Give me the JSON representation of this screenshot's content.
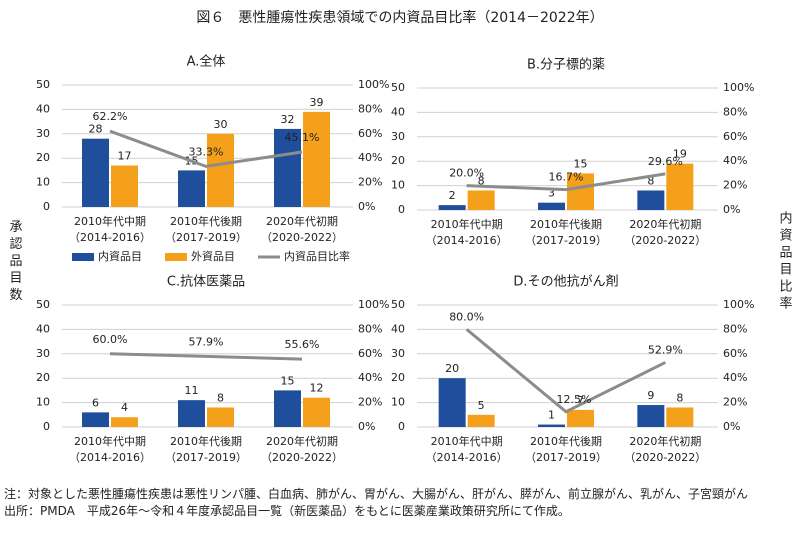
{
  "title": "図６　悪性腫瘍性疾患領域での内資品目比率（2014－2022年）",
  "y_label": "承認品目数",
  "y2_label": "内資品目比率",
  "chart_data": [
    {
      "type": "bar_line",
      "title": "A.全体",
      "categories": [
        [
          "2010年代中期",
          "（2014-2016）"
        ],
        [
          "2010年代後期",
          "（2017-2019）"
        ],
        [
          "2020年代初期",
          "（2020-2022）"
        ]
      ],
      "series": [
        {
          "name": "内資品目",
          "color": "#1f4e9c",
          "values": [
            28,
            15,
            32
          ]
        },
        {
          "name": "外資品目",
          "color": "#f5a01a",
          "values": [
            17,
            30,
            39
          ]
        },
        {
          "name": "内資品目比率",
          "color": "#8c8c8c",
          "axis": "y2",
          "values": [
            62.2,
            33.3,
            45.1
          ],
          "value_labels": [
            "62.2%",
            "33.3%",
            "45.1%"
          ]
        }
      ],
      "ylim": [
        0,
        50
      ],
      "yticks": [
        0,
        10,
        20,
        30,
        40,
        50
      ],
      "y2lim": [
        0,
        100
      ],
      "y2ticks": [
        {
          "value": 0,
          "label": "0%"
        },
        {
          "value": 20,
          "label": "20%"
        },
        {
          "value": 40,
          "label": "40%"
        },
        {
          "value": 60,
          "label": "60%"
        },
        {
          "value": 80,
          "label": "80%"
        },
        {
          "value": 100,
          "label": "100%"
        }
      ],
      "grid": true
    },
    {
      "type": "bar_line",
      "title": "B.分子標的薬",
      "categories": [
        [
          "2010年代中期",
          "（2014-2016）"
        ],
        [
          "2010年代後期",
          "（2017-2019）"
        ],
        [
          "2020年代初期",
          "（2020-2022）"
        ]
      ],
      "series": [
        {
          "color": "#1f4e9c",
          "values": [
            2,
            3,
            8
          ]
        },
        {
          "color": "#f5a01a",
          "values": [
            8,
            15,
            19
          ]
        },
        {
          "color": "#8c8c8c",
          "axis": "y2",
          "values": [
            20.0,
            16.7,
            29.6
          ],
          "value_labels": [
            "20.0%",
            "16.7%",
            "29.6%"
          ]
        }
      ],
      "ylim": [
        0,
        50
      ],
      "yticks": [
        0,
        10,
        20,
        30,
        40,
        50
      ],
      "y2lim": [
        0,
        100
      ],
      "y2ticks": [
        {
          "value": 0,
          "label": "0%"
        },
        {
          "value": 20,
          "label": "20%"
        },
        {
          "value": 40,
          "label": "40%"
        },
        {
          "value": 60,
          "label": "60%"
        },
        {
          "value": 80,
          "label": "80%"
        },
        {
          "value": 100,
          "label": "100%"
        }
      ],
      "grid": true
    },
    {
      "type": "bar_line",
      "title": "C.抗体医薬品",
      "categories": [
        [
          "2010年代中期",
          "（2014-2016）"
        ],
        [
          "2010年代後期",
          "（2017-2019）"
        ],
        [
          "2020年代初期",
          "（2020-2022）"
        ]
      ],
      "series": [
        {
          "color": "#1f4e9c",
          "values": [
            6,
            11,
            15
          ]
        },
        {
          "color": "#f5a01a",
          "values": [
            4,
            8,
            12
          ]
        },
        {
          "color": "#8c8c8c",
          "axis": "y2",
          "values": [
            60.0,
            57.9,
            55.6
          ],
          "value_labels": [
            "60.0%",
            "57.9%",
            "55.6%"
          ]
        }
      ],
      "ylim": [
        0,
        50
      ],
      "yticks": [
        0,
        10,
        20,
        30,
        40,
        50
      ],
      "y2lim": [
        0,
        100
      ],
      "y2ticks": [
        {
          "value": 0,
          "label": "0%"
        },
        {
          "value": 20,
          "label": "20%"
        },
        {
          "value": 40,
          "label": "40%"
        },
        {
          "value": 60,
          "label": "60%"
        },
        {
          "value": 80,
          "label": "80%"
        },
        {
          "value": 100,
          "label": "100%"
        }
      ],
      "grid": true
    },
    {
      "type": "bar_line",
      "title": "D.その他抗がん剤",
      "categories": [
        [
          "2010年代中期",
          "（2014-2016）"
        ],
        [
          "2010年代後期",
          "（2017-2019）"
        ],
        [
          "2020年代初期",
          "（2020-2022）"
        ]
      ],
      "series": [
        {
          "color": "#1f4e9c",
          "values": [
            20,
            1,
            9
          ]
        },
        {
          "color": "#f5a01a",
          "values": [
            5,
            7,
            8
          ]
        },
        {
          "color": "#8c8c8c",
          "axis": "y2",
          "values": [
            80.0,
            12.5,
            52.9
          ],
          "value_labels": [
            "80.0%",
            "12.5%",
            "52.9%"
          ]
        }
      ],
      "ylim": [
        0,
        50
      ],
      "yticks": [
        0,
        10,
        20,
        30,
        40,
        50
      ],
      "y2lim": [
        0,
        100
      ],
      "y2ticks": [
        {
          "value": 0,
          "label": "0%"
        },
        {
          "value": 20,
          "label": "20%"
        },
        {
          "value": 40,
          "label": "40%"
        },
        {
          "value": 60,
          "label": "60%"
        },
        {
          "value": 80,
          "label": "80%"
        },
        {
          "value": 100,
          "label": "100%"
        }
      ],
      "grid": true
    }
  ],
  "notes": [
    "注：対象とした悪性腫瘍性疾患は悪性リンパ腫、白血病、肺がん、胃がん、大腸がん、肝がん、膵がん、前立腺がん、乳がん、子宮頸がん",
    "出所：PMDA　平成26年～令和４年度承認品目一覧（新医薬品）をもとに医薬産業政策研究所にて作成。"
  ]
}
